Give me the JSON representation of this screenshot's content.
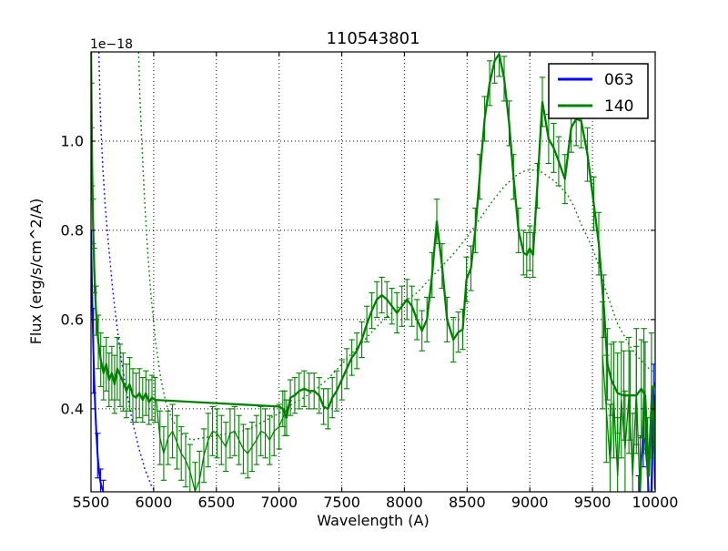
{
  "figure": {
    "background": "#ffffff"
  },
  "chart_data": {
    "type": "line",
    "title": "110543801",
    "xlabel": "Wavelength (A)",
    "ylabel": "Flux (erg/s/cm^2/A)",
    "offset_text": "1e−18",
    "xlim": [
      5500,
      10000
    ],
    "ylim": [
      0.214,
      1.2
    ],
    "xticks": [
      5500,
      6000,
      6500,
      7000,
      7500,
      8000,
      8500,
      9000,
      9500,
      10000
    ],
    "yticks": [
      0.4,
      0.6,
      0.8,
      1.0
    ],
    "grid": true,
    "grid_style": "dotted-black",
    "colors": {
      "blue": "#0000ff",
      "green": "#008000",
      "frame": "#000000"
    },
    "legend": {
      "position": "upper right",
      "entries": [
        {
          "label": "063",
          "color": "#0000ff"
        },
        {
          "label": "140",
          "color": "#008000"
        }
      ]
    },
    "series": [
      {
        "name": "063-spectrum-left",
        "color": "#0000ff",
        "dash": "solid",
        "width": 2,
        "x": [
          5500,
          5506,
          5512,
          5519,
          5526,
          5534,
          5543,
          5553,
          5564,
          5576,
          5588,
          5598
        ],
        "y": [
          0.8,
          0.7,
          0.61,
          0.53,
          0.46,
          0.4,
          0.345,
          0.295,
          0.26,
          0.235,
          0.222,
          0.215
        ],
        "err": [
          0,
          0,
          0,
          0.095,
          0,
          0,
          0,
          0.05,
          0,
          0.03,
          0,
          0.025
        ]
      },
      {
        "name": "063-spectrum-right",
        "color": "#0000ff",
        "dash": "solid",
        "width": 2.2,
        "x": [
          9848,
          9868,
          9888,
          9905,
          9922,
          9940,
          9955,
          9970,
          9988,
          10000
        ],
        "y": [
          0.135,
          0.19,
          0.285,
          0.335,
          0.325,
          0.26,
          0.15,
          0.215,
          0.43,
          0.22
        ],
        "err": [
          0,
          0.06,
          0,
          0.065,
          0,
          0,
          0.055,
          0,
          0.07,
          0
        ]
      },
      {
        "name": "063-model-dotted",
        "color": "#0000ff",
        "dash": "dotted",
        "width": 1.4,
        "x": [
          5562,
          5575,
          5592,
          5615,
          5642,
          5672,
          5705,
          5742,
          5782,
          5828,
          5878,
          5930,
          5985,
          6020
        ],
        "y": [
          1.21,
          1.06,
          0.95,
          0.85,
          0.76,
          0.67,
          0.59,
          0.51,
          0.44,
          0.375,
          0.315,
          0.265,
          0.225,
          0.212
        ],
        "err": []
      },
      {
        "name": "140-spectrum-main",
        "color": "#008000",
        "dash": "solid",
        "width": 2.3,
        "x": [
          5500,
          5504,
          5509,
          5516,
          5526,
          5540,
          5558,
          5578,
          5600,
          5622,
          5644,
          5666,
          5688,
          5710,
          5732,
          5756,
          5782,
          5808,
          5834,
          5860,
          5886,
          5912,
          5938,
          5962,
          5986,
          6010,
          7000,
          7030,
          7060,
          7090,
          7125,
          7160,
          7200,
          7240,
          7280,
          7320,
          7355,
          7390,
          7425,
          7460,
          7500,
          7540,
          7580,
          7620,
          7660,
          7700,
          7740,
          7780,
          7820,
          7860,
          7900,
          7940,
          7980,
          8020,
          8060,
          8100,
          8140,
          8180,
          8220,
          8258,
          8300,
          8340,
          8390,
          8430,
          8465,
          8495,
          8530,
          8565,
          8600,
          8640,
          8680,
          8720,
          8755,
          8795,
          8835,
          8870,
          8910,
          8950,
          8975,
          9000,
          9025,
          9060,
          9100,
          9150,
          9190,
          9230,
          9280,
          9330,
          9370,
          9410,
          9460,
          9510,
          9550,
          9590,
          9620,
          9650,
          9700,
          9750,
          9800,
          9850,
          9890,
          9920,
          9950,
          9975,
          10000
        ],
        "y": [
          1.21,
          1.08,
          0.95,
          0.82,
          0.71,
          0.62,
          0.55,
          0.51,
          0.48,
          0.5,
          0.465,
          0.48,
          0.455,
          0.49,
          0.475,
          0.46,
          0.44,
          0.455,
          0.43,
          0.425,
          0.435,
          0.42,
          0.435,
          0.415,
          0.425,
          0.42,
          0.405,
          0.4,
          0.38,
          0.425,
          0.43,
          0.44,
          0.445,
          0.44,
          0.44,
          0.43,
          0.405,
          0.4,
          0.425,
          0.44,
          0.465,
          0.49,
          0.515,
          0.53,
          0.555,
          0.59,
          0.62,
          0.645,
          0.655,
          0.645,
          0.63,
          0.615,
          0.63,
          0.645,
          0.63,
          0.6,
          0.575,
          0.6,
          0.7,
          0.82,
          0.72,
          0.6,
          0.555,
          0.572,
          0.578,
          0.69,
          0.715,
          0.8,
          0.92,
          1.05,
          1.13,
          1.18,
          1.195,
          1.14,
          1.04,
          0.92,
          0.8,
          0.75,
          0.745,
          0.76,
          0.745,
          0.9,
          1.088,
          1.005,
          0.985,
          0.955,
          0.915,
          1.03,
          1.05,
          1.045,
          0.97,
          0.86,
          0.77,
          0.63,
          0.5,
          0.465,
          0.435,
          0.43,
          0.43,
          0.43,
          0.445,
          0.43,
          0.25,
          0.45,
          0.28
        ],
        "err": [
          0,
          0.05,
          0.05,
          0.05,
          0.05,
          0.055,
          0.06,
          0.06,
          0.06,
          0.06,
          0.06,
          0.06,
          0.065,
          0.07,
          0.07,
          0.065,
          0.06,
          0.06,
          0.06,
          0.055,
          0.055,
          0.05,
          0.05,
          0.05,
          0.05,
          0.05,
          0,
          0.04,
          0.04,
          0.04,
          0.04,
          0.04,
          0.04,
          0.04,
          0.04,
          0.04,
          0.04,
          0.045,
          0.045,
          0.045,
          0.045,
          0.045,
          0.04,
          0.04,
          0.04,
          0.04,
          0.04,
          0.04,
          0.04,
          0.04,
          0.04,
          0.045,
          0.045,
          0.045,
          0.045,
          0.045,
          0.045,
          0.05,
          0.05,
          0.05,
          0.05,
          0.05,
          0.05,
          0.045,
          0.045,
          0.05,
          0.05,
          0.05,
          0.05,
          0.05,
          0.05,
          0.05,
          0.05,
          0.05,
          0.05,
          0.05,
          0.05,
          0.05,
          0.05,
          0.05,
          0.05,
          0.05,
          0.055,
          0.055,
          0.055,
          0.055,
          0.055,
          0.055,
          0.06,
          0.06,
          0.06,
          0.06,
          0.07,
          0.07,
          0.08,
          0.08,
          0.09,
          0.1,
          0.1,
          0.11,
          0.11,
          0.12,
          0,
          0,
          0
        ]
      },
      {
        "name": "140-spectrum-low-6000-7100",
        "color": "#008000",
        "dash": "solid",
        "width": 1.3,
        "x": [
          6020,
          6050,
          6080,
          6115,
          6150,
          6185,
          6220,
          6255,
          6290,
          6330,
          6365,
          6400,
          6435,
          6470,
          6505,
          6540,
          6575,
          6610,
          6645,
          6680,
          6715,
          6750,
          6785,
          6820,
          6855,
          6890,
          6925,
          6960,
          7000,
          7045,
          7100
        ],
        "y": [
          0.42,
          0.335,
          0.3,
          0.335,
          0.35,
          0.325,
          0.3,
          0.285,
          0.26,
          0.215,
          0.24,
          0.295,
          0.33,
          0.35,
          0.345,
          0.33,
          0.315,
          0.345,
          0.35,
          0.33,
          0.31,
          0.3,
          0.315,
          0.33,
          0.35,
          0.345,
          0.33,
          0.35,
          0.36,
          0.39,
          0.42
        ],
        "err": [
          0,
          0.06,
          0.06,
          0.06,
          0.06,
          0.06,
          0.06,
          0.06,
          0.06,
          0.065,
          0.065,
          0.06,
          0.06,
          0.055,
          0.055,
          0.055,
          0.055,
          0.055,
          0.055,
          0.055,
          0.055,
          0.055,
          0.055,
          0.055,
          0.055,
          0.055,
          0.055,
          0.055,
          0.05,
          0.05,
          0
        ]
      },
      {
        "name": "140-spectrum-low-9580-10000",
        "color": "#008000",
        "dash": "solid",
        "width": 1.3,
        "x": [
          9580,
          9610,
          9640,
          9670,
          9700,
          9730,
          9760,
          9790,
          9820,
          9850,
          9880,
          9910,
          9940,
          9970,
          10000
        ],
        "y": [
          0.52,
          0.4,
          0.28,
          0.42,
          0.25,
          0.42,
          0.31,
          0.43,
          0.25,
          0.44,
          0.2,
          0.44,
          0.24,
          0.43,
          0.46
        ],
        "err": [
          0.12,
          0.12,
          0.13,
          0.13,
          0.13,
          0.13,
          0.13,
          0.13,
          0.14,
          0.14,
          0.14,
          0.14,
          0.14,
          0.14,
          0.14
        ]
      },
      {
        "name": "140-model-dotted",
        "color": "#008000",
        "dash": "dotted",
        "width": 1.4,
        "x": [
          5878,
          5890,
          5905,
          5925,
          5950,
          5980,
          6015,
          6055,
          6100,
          6150,
          6220,
          6300,
          6400,
          6500,
          6600,
          6700,
          6800,
          6900,
          7000,
          7100,
          7200,
          7300,
          7400,
          7500,
          7600,
          7700,
          7800,
          7900,
          8000,
          8100,
          8200,
          8300,
          8400,
          8500,
          8600,
          8700,
          8800,
          8900,
          8975,
          9050,
          9100,
          9150,
          9200,
          9250,
          9300,
          9350,
          9400,
          9450,
          9500,
          9550,
          9600,
          9650,
          9700,
          9750,
          9800,
          9850,
          9900,
          9950,
          10000
        ],
        "y": [
          1.21,
          1.1,
          1.0,
          0.88,
          0.76,
          0.65,
          0.55,
          0.47,
          0.41,
          0.375,
          0.345,
          0.33,
          0.335,
          0.34,
          0.345,
          0.35,
          0.36,
          0.375,
          0.39,
          0.41,
          0.425,
          0.445,
          0.47,
          0.5,
          0.53,
          0.56,
          0.59,
          0.615,
          0.64,
          0.66,
          0.69,
          0.72,
          0.75,
          0.785,
          0.825,
          0.865,
          0.9,
          0.925,
          0.935,
          0.935,
          0.93,
          0.92,
          0.91,
          0.895,
          0.88,
          0.855,
          0.82,
          0.79,
          0.76,
          0.72,
          0.67,
          0.63,
          0.59,
          0.565,
          0.54,
          0.52,
          0.505,
          0.49,
          0.48
        ],
        "err": []
      }
    ]
  }
}
